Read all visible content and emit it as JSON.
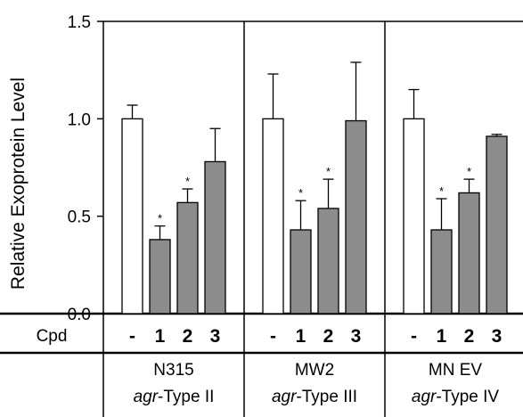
{
  "chart_data": {
    "type": "bar",
    "ylabel": "Relative Exoprotein Level",
    "ylim": [
      0,
      1.5
    ],
    "yticks": [
      "0.0",
      "0.5",
      "1.0",
      "1.5"
    ],
    "row_label": "Cpd",
    "compound_labels": [
      "-",
      "1",
      "2",
      "3"
    ],
    "bar_colors": [
      "#ffffff",
      "#8c8c8c",
      "#8c8c8c",
      "#8c8c8c"
    ],
    "significance_marker": "*",
    "groups": [
      {
        "name": "N315",
        "type_prefix": "agr",
        "type_suffix": "-Type II",
        "values": [
          1.0,
          0.38,
          0.57,
          0.78
        ],
        "errors": [
          0.07,
          0.07,
          0.07,
          0.17
        ],
        "significant": [
          false,
          true,
          true,
          false
        ]
      },
      {
        "name": "MW2",
        "type_prefix": "agr",
        "type_suffix": "-Type III",
        "values": [
          1.0,
          0.43,
          0.54,
          0.99
        ],
        "errors": [
          0.23,
          0.15,
          0.15,
          0.3
        ],
        "significant": [
          false,
          true,
          true,
          false
        ]
      },
      {
        "name": "MN EV",
        "type_prefix": "agr",
        "type_suffix": "-Type IV",
        "values": [
          1.0,
          0.43,
          0.62,
          0.91
        ],
        "errors": [
          0.15,
          0.16,
          0.07,
          0.01
        ],
        "significant": [
          false,
          true,
          true,
          false
        ]
      }
    ]
  }
}
